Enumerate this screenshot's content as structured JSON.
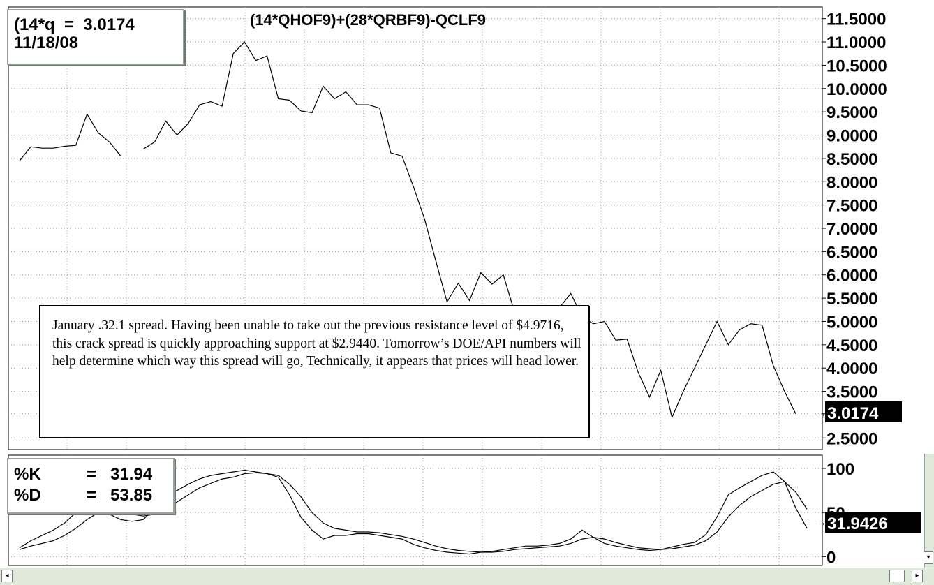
{
  "price_panel": {
    "title": "(14*QHOF9)+(28*QRBF9)-QCLF9",
    "readout_line1": "(14*q  =  3.0174",
    "readout_line2": "11/18/08",
    "last_value_badge": "3.0174"
  },
  "stoch_panel": {
    "k_label": "%K",
    "k_eq": "=",
    "k_value": "31.94",
    "d_label": "%D",
    "d_eq": "=",
    "d_value": "53.85",
    "last_value_badge": "31.9426"
  },
  "note": {
    "text": "January .32.1 spread. Having been unable to take out the previous resistance level of $4.9716, this crack spread is quickly approaching support at $2.9440. Tomorrow’s DOE/API numbers will help determine which way this spread will go, Technically, it appears that prices will head lower."
  },
  "scrollbar": {
    "left_arrow": "◂",
    "right_arrow": "▸",
    "down_arrow": "▾"
  },
  "colors": {
    "background": "#ffffff",
    "line": "#000000",
    "grid": "#9a9a9a",
    "badge_bg": "#000000",
    "badge_fg": "#ffffff",
    "scrollbar": "#dfe9d9"
  },
  "chart_data": [
    {
      "type": "line",
      "title": "(14*QHOF9)+(28*QRBF9)-QCLF9",
      "ylim": [
        2.25,
        11.75
      ],
      "ytick_labels": [
        "11.5000",
        "11.0000",
        "10.5000",
        "10.0000",
        "9.5000",
        "9.0000",
        "8.5000",
        "8.0000",
        "7.5000",
        "7.0000",
        "6.5000",
        "6.0000",
        "5.5000",
        "5.0000",
        "4.5000",
        "4.0000",
        "3.5000",
        "3.0174",
        "2.5000"
      ],
      "yticks": [
        11.5,
        11.0,
        10.5,
        10.0,
        9.5,
        9.0,
        8.5,
        8.0,
        7.5,
        7.0,
        6.5,
        6.0,
        5.5,
        5.0,
        4.5,
        4.0,
        3.5,
        3.0174,
        2.5
      ],
      "grid": true,
      "series": [
        {
          "values": [
            8.45,
            8.75,
            8.72,
            8.72,
            8.76,
            8.78,
            9.45,
            9.05,
            8.85,
            8.55,
            null,
            8.7,
            8.85,
            9.3,
            9.0,
            9.25,
            9.65,
            9.72,
            9.62,
            10.75,
            11.0,
            10.6,
            10.7,
            9.78,
            9.75,
            9.52,
            9.48,
            10.05,
            9.78,
            9.93,
            9.65,
            9.65,
            9.58,
            8.62,
            8.55,
            7.9,
            7.2,
            6.3,
            5.42,
            5.82,
            5.45,
            6.05,
            5.8,
            6.0,
            5.2,
            4.9,
            5.0,
            5.1,
            5.3,
            5.6,
            5.1,
            4.95,
            5.0,
            4.6,
            4.62,
            3.9,
            3.38,
            3.95,
            2.94,
            3.5,
            4.0,
            4.5,
            5.0,
            4.5,
            4.82,
            4.95,
            4.92,
            4.05,
            3.5,
            3.0174
          ]
        }
      ]
    },
    {
      "type": "line",
      "title": "Stochastic",
      "ylim": [
        -10,
        115
      ],
      "ytick_labels": [
        "100",
        "50",
        "0"
      ],
      "yticks": [
        100,
        50,
        0
      ],
      "grid": true,
      "series": [
        {
          "name": "%K",
          "values": [
            10,
            18,
            24,
            30,
            38,
            50,
            62,
            58,
            48,
            42,
            40,
            42,
            55,
            70,
            75,
            82,
            88,
            92,
            94,
            96,
            98,
            96,
            94,
            90,
            70,
            45,
            30,
            20,
            24,
            24,
            26,
            26,
            24,
            22,
            20,
            14,
            10,
            7,
            5,
            4,
            3,
            5,
            6,
            8,
            10,
            12,
            12,
            13,
            15,
            20,
            30,
            22,
            15,
            12,
            10,
            8,
            7,
            8,
            11,
            14,
            16,
            25,
            45,
            70,
            78,
            85,
            92,
            96,
            85,
            55,
            31.94
          ]
        },
        {
          "name": "%D",
          "values": [
            8,
            12,
            15,
            18,
            24,
            32,
            42,
            50,
            52,
            50,
            48,
            46,
            48,
            55,
            62,
            70,
            78,
            83,
            88,
            90,
            94,
            95,
            94,
            92,
            82,
            68,
            50,
            38,
            32,
            30,
            28,
            28,
            27,
            25,
            23,
            20,
            16,
            12,
            9,
            7,
            6,
            5,
            5,
            6,
            8,
            9,
            10,
            11,
            12,
            15,
            20,
            22,
            20,
            16,
            13,
            10,
            9,
            8,
            9,
            11,
            13,
            18,
            28,
            45,
            58,
            68,
            75,
            82,
            85,
            73,
            53.85
          ]
        }
      ]
    }
  ]
}
